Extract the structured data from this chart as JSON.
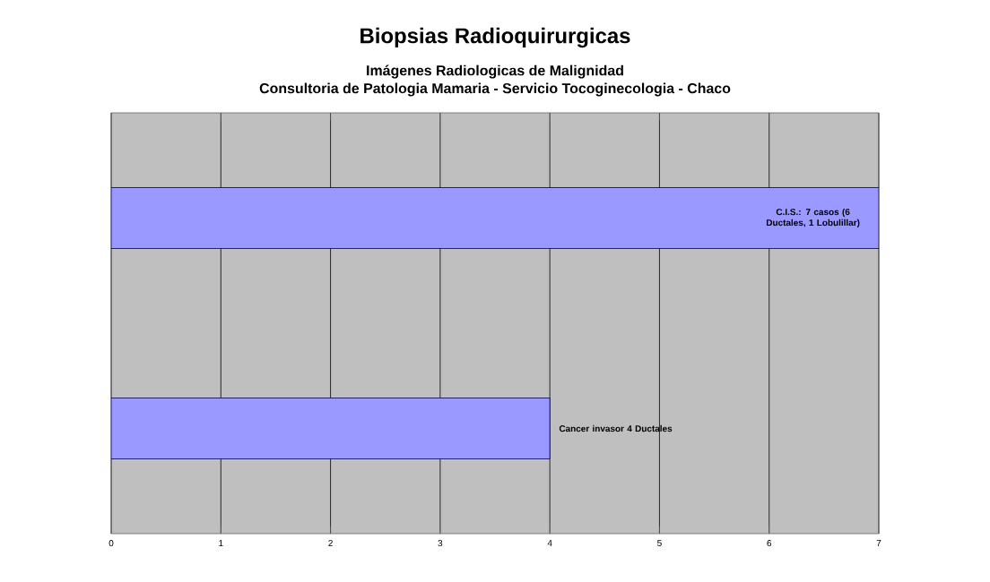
{
  "chart_data": {
    "type": "bar",
    "orientation": "horizontal",
    "title": "Biopsias Radioquirurgicas",
    "subtitle": "Imágenes Radiologicas de Malignidad\nConsultoria de Patologia Mamaria - Servicio Tocoginecologia - Chaco",
    "categories": [
      null,
      null
    ],
    "values": [
      7,
      4
    ],
    "value_labels": [
      "C.I.S.: 7 casos (6 Ductales, 1 Lobulillar)",
      "Cancer invasor 4 Ductales"
    ],
    "color": "#9999ff",
    "xlim": [
      0,
      7
    ],
    "xticks": [
      0,
      1,
      2,
      3,
      4,
      5,
      6,
      7
    ],
    "grid": "x"
  }
}
